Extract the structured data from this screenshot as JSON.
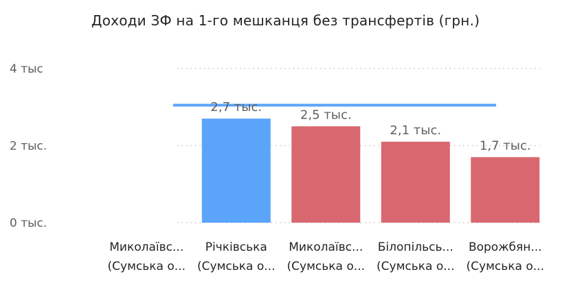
{
  "chart_data": {
    "type": "bar",
    "title": "Доходи ЗФ на 1-го мешканця без трансфертів (грн.)",
    "xlabel": "",
    "ylabel": "",
    "ylim": [
      0,
      4000
    ],
    "y_ticks": [
      {
        "value": 0,
        "label": "0 тыс."
      },
      {
        "value": 2000,
        "label": "2 тыс."
      },
      {
        "value": 4000,
        "label": "4 тыс"
      }
    ],
    "grid": true,
    "categories": [
      {
        "line1": "Миколаївс...",
        "line2": "(Сумська о..."
      },
      {
        "line1": "Річківська",
        "line2": "(Сумська о..."
      },
      {
        "line1": "Миколаївс...",
        "line2": "(Сумська о..."
      },
      {
        "line1": "Білопільсь...",
        "line2": "(Сумська о..."
      },
      {
        "line1": "Ворожбян...",
        "line2": "(Сумська о..."
      }
    ],
    "values": [
      null,
      2700,
      2500,
      2100,
      1700
    ],
    "data_labels": [
      "",
      "2,7 тыс.",
      "2,5 тыс.",
      "2,1 тыс.",
      "1,7 тыс."
    ],
    "bar_colors": [
      "#5aa4fa",
      "#5aa4fa",
      "#d9676f",
      "#d9676f",
      "#d9676f"
    ],
    "reference_line": {
      "value": 3050,
      "color": "#5aa4fa"
    },
    "gridline_color": "#c8c6c4",
    "axis_text_color": "#605e5c",
    "category_text_color": "#252423"
  }
}
